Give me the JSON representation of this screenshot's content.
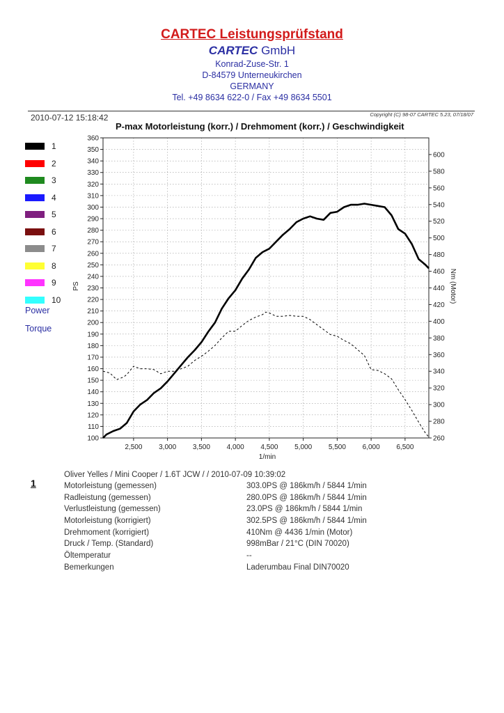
{
  "header": {
    "title": "CARTEC Leistungsprüfstand",
    "company_brand": "CARTEC",
    "company_suffix": "GmbH",
    "address": [
      "Konrad-Zuse-Str. 1",
      "D-84579 Unterneukirchen",
      "GERMANY",
      "Tel. +49 8634  622-0 / Fax +49 8634 5501"
    ]
  },
  "meta": {
    "datetime": "2010-07-12 15:18:42",
    "copyright": "Copyright (C) 98-07 CARTEC 5.23, 07/18/07"
  },
  "legend": {
    "items": [
      {
        "label": "1",
        "color": "#000000"
      },
      {
        "label": "2",
        "color": "#ff0000"
      },
      {
        "label": "3",
        "color": "#1f8a1f"
      },
      {
        "label": "4",
        "color": "#1a1aff"
      },
      {
        "label": "5",
        "color": "#7f1f7f"
      },
      {
        "label": "6",
        "color": "#7a0f0f"
      },
      {
        "label": "7",
        "color": "#8c8c8c"
      },
      {
        "label": "8",
        "color": "#ffff33"
      },
      {
        "label": "9",
        "color": "#ff33ff"
      },
      {
        "label": "10",
        "color": "#33ffff"
      }
    ],
    "power_label": "Power",
    "torque_label": "Torque"
  },
  "chart_data": {
    "type": "line",
    "title": "P-max Motorleistung (korr.) / Drehmoment (korr.) / Geschwindigkeit",
    "xlabel": "1/min",
    "ylabel_left": "PS",
    "ylabel_right": "Nm (Motor)",
    "xlim": [
      2050,
      6850
    ],
    "ylim_left": [
      100,
      360
    ],
    "ylim_right": [
      260,
      620
    ],
    "x_ticks": [
      2500,
      3000,
      3500,
      4000,
      4500,
      5000,
      5500,
      6000,
      6500
    ],
    "x_tick_labels": [
      "2,500",
      "3,000",
      "3,500",
      "4,000",
      "4,500",
      "5,000",
      "5,500",
      "6,000",
      "6,500"
    ],
    "left_ticks": [
      100,
      110,
      120,
      130,
      140,
      150,
      160,
      170,
      180,
      190,
      200,
      210,
      220,
      230,
      240,
      250,
      260,
      270,
      280,
      290,
      300,
      310,
      320,
      330,
      340,
      350,
      360
    ],
    "right_ticks": [
      260,
      280,
      300,
      320,
      340,
      360,
      380,
      400,
      420,
      440,
      460,
      480,
      500,
      520,
      540,
      560,
      580,
      600
    ],
    "grid": true,
    "series": [
      {
        "name": "Power",
        "axis": "left",
        "style": "solid",
        "color": "#000000",
        "x": [
          2050,
          2100,
          2200,
          2300,
          2400,
          2500,
          2600,
          2700,
          2800,
          2900,
          3000,
          3100,
          3200,
          3300,
          3400,
          3500,
          3600,
          3700,
          3800,
          3900,
          4000,
          4100,
          4200,
          4300,
          4400,
          4500,
          4600,
          4700,
          4800,
          4900,
          5000,
          5100,
          5200,
          5300,
          5400,
          5500,
          5600,
          5700,
          5800,
          5900,
          6000,
          6100,
          6200,
          6300,
          6400,
          6500,
          6600,
          6700,
          6800,
          6850
        ],
        "y": [
          100,
          103,
          106,
          108,
          113,
          123,
          129,
          133,
          139,
          143,
          149,
          156,
          163,
          170,
          176,
          183,
          192,
          200,
          212,
          221,
          228,
          238,
          246,
          256,
          261,
          264,
          270,
          276,
          281,
          287,
          290,
          292,
          290,
          289,
          295,
          296,
          300,
          302,
          302,
          303,
          302,
          301,
          300,
          293,
          281,
          277,
          268,
          255,
          250,
          247
        ]
      },
      {
        "name": "Torque",
        "axis": "right",
        "style": "dashed",
        "color": "#000000",
        "x": [
          2050,
          2150,
          2250,
          2350,
          2400,
          2500,
          2600,
          2700,
          2800,
          2900,
          3000,
          3100,
          3200,
          3300,
          3400,
          3500,
          3600,
          3700,
          3800,
          3900,
          4000,
          4100,
          4200,
          4300,
          4400,
          4450,
          4500,
          4600,
          4700,
          4800,
          4900,
          5000,
          5100,
          5200,
          5300,
          5400,
          5500,
          5600,
          5700,
          5800,
          5900,
          6000,
          6100,
          6200,
          6300,
          6400,
          6500,
          6600,
          6700,
          6800,
          6850
        ],
        "y": [
          340,
          338,
          330,
          333,
          336,
          346,
          343,
          343,
          342,
          337,
          340,
          340,
          343,
          346,
          353,
          358,
          364,
          371,
          380,
          388,
          388,
          395,
          401,
          405,
          408,
          411,
          410,
          406,
          406,
          407,
          406,
          406,
          402,
          396,
          390,
          384,
          382,
          377,
          373,
          366,
          359,
          342,
          341,
          337,
          331,
          318,
          306,
          293,
          279,
          266,
          261
        ]
      }
    ]
  },
  "report": {
    "index": "1",
    "run_info": "Oliver Yelles / Mini Cooper / 1.6T JCW /  / 2010-07-09 10:39:02",
    "rows": [
      {
        "label": "Motorleistung (gemessen)",
        "value": "303.0PS @ 186km/h / 5844 1/min"
      },
      {
        "label": "Radleistung (gemessen)",
        "value": "280.0PS @ 186km/h / 5844 1/min"
      },
      {
        "label": "Verlustleistung (gemessen)",
        "value": "23.0PS @ 186km/h / 5844 1/min"
      },
      {
        "label": "Motorleistung (korrigiert)",
        "value": "302.5PS @ 186km/h / 5844 1/min"
      },
      {
        "label": "Drehmoment (korrigiert)",
        "value": "410Nm @ 4436 1/min (Motor)"
      },
      {
        "label": "Druck / Temp. (Standard)",
        "value": "998mBar / 21°C   (DIN 70020)"
      },
      {
        "label": "Öltemperatur",
        "value": "--"
      },
      {
        "label": "Bemerkungen",
        "value": "Laderumbau Final DIN70020"
      }
    ]
  }
}
